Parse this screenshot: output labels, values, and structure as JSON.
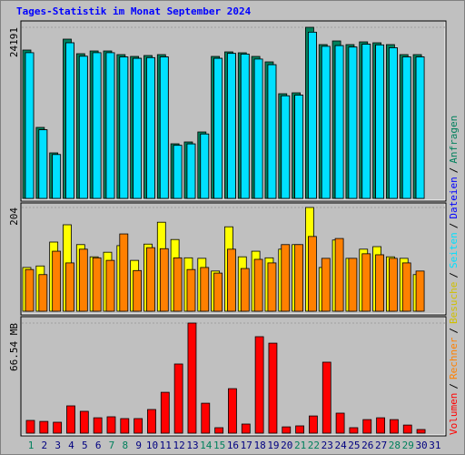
{
  "title": "Tages-Statistik im Monat September 2024",
  "legend_separator": "/",
  "chart_data": [
    {
      "type": "bar",
      "yticks": [
        24191
      ],
      "ylim": [
        0,
        24191
      ],
      "series": [
        {
          "name": "Anfragen",
          "color": "#00805c",
          "values": [
            20974,
            10037,
            6434,
            22518,
            20459,
            20845,
            20845,
            20330,
            20073,
            20202,
            20330,
            7721,
            7978,
            9393,
            20073,
            20716,
            20588,
            20073,
            19301,
            14798,
            14926,
            24191,
            21746,
            22261,
            21746,
            22132,
            22003,
            21746,
            20330,
            20330,
            null
          ]
        },
        {
          "name": "Dateien",
          "color": "#0000ff",
          "values": [
            20600,
            9700,
            6200,
            22000,
            20100,
            20600,
            20600,
            20000,
            19800,
            19900,
            20000,
            7500,
            7700,
            9100,
            19800,
            20500,
            20400,
            19700,
            18900,
            14500,
            14600,
            23500,
            21500,
            21600,
            21400,
            21800,
            21700,
            21300,
            20000,
            20000,
            null
          ]
        },
        {
          "name": "Seiten",
          "color": "#00e0ff",
          "values": [
            20600,
            9700,
            6200,
            22000,
            20100,
            20600,
            20600,
            20000,
            19800,
            19900,
            20000,
            7500,
            7700,
            9100,
            19800,
            20500,
            20400,
            19700,
            18900,
            14500,
            14600,
            23500,
            21500,
            21600,
            21400,
            21800,
            21700,
            21300,
            20000,
            20000,
            null
          ]
        }
      ]
    },
    {
      "type": "bar",
      "yticks": [
        204
      ],
      "ylim": [
        0,
        204
      ],
      "series": [
        {
          "name": "Besuche",
          "color": "#ffff00",
          "values": [
            86,
            89,
            136,
            170,
            131,
            107,
            116,
            129,
            100,
            132,
            175,
            141,
            105,
            104,
            79,
            166,
            107,
            118,
            105,
            122,
            131,
            204,
            86,
            140,
            104,
            122,
            127,
            107,
            104,
            72,
            null
          ]
        },
        {
          "name": "Rechner",
          "color": "#ff8000",
          "values": [
            82,
            72,
            118,
            95,
            122,
            105,
            100,
            152,
            80,
            125,
            123,
            105,
            82,
            86,
            75,
            122,
            84,
            102,
            95,
            131,
            131,
            147,
            104,
            143,
            104,
            113,
            111,
            104,
            95,
            79,
            null
          ]
        }
      ]
    },
    {
      "type": "bar",
      "yticks": [
        {
          "value": 66.54,
          "label": "66.54 MB"
        }
      ],
      "ylim": [
        0,
        66.54
      ],
      "categories": [
        "1",
        "2",
        "3",
        "4",
        "5",
        "6",
        "7",
        "8",
        "9",
        "10",
        "11",
        "12",
        "13",
        "14",
        "15",
        "16",
        "17",
        "18",
        "19",
        "20",
        "21",
        "22",
        "23",
        "24",
        "25",
        "26",
        "27",
        "28",
        "29",
        "30",
        "31"
      ],
      "category_colors": [
        "#00805c",
        "#000080",
        "#000080",
        "#000080",
        "#000080",
        "#000080",
        "#00805c",
        "#00805c",
        "#000080",
        "#000080",
        "#000080",
        "#000080",
        "#000080",
        "#00805c",
        "#00805c",
        "#000080",
        "#000080",
        "#000080",
        "#000080",
        "#000080",
        "#00805c",
        "#00805c",
        "#000080",
        "#000080",
        "#000080",
        "#000080",
        "#000080",
        "#00805c",
        "#00805c",
        "#000080",
        "#000080"
      ],
      "series": [
        {
          "name": "Volumen",
          "color": "#ff0000",
          "values": [
            7.7,
            7.1,
            6.6,
            16.5,
            13.2,
            9.3,
            9.9,
            8.8,
            8.8,
            14.3,
            24.7,
            41.8,
            66.54,
            18.1,
            3.3,
            26.9,
            5.5,
            58.3,
            54.4,
            3.8,
            4.4,
            10.4,
            42.9,
            12.1,
            3.3,
            8.2,
            9.3,
            8.2,
            4.9,
            2.2,
            null
          ]
        }
      ]
    }
  ]
}
